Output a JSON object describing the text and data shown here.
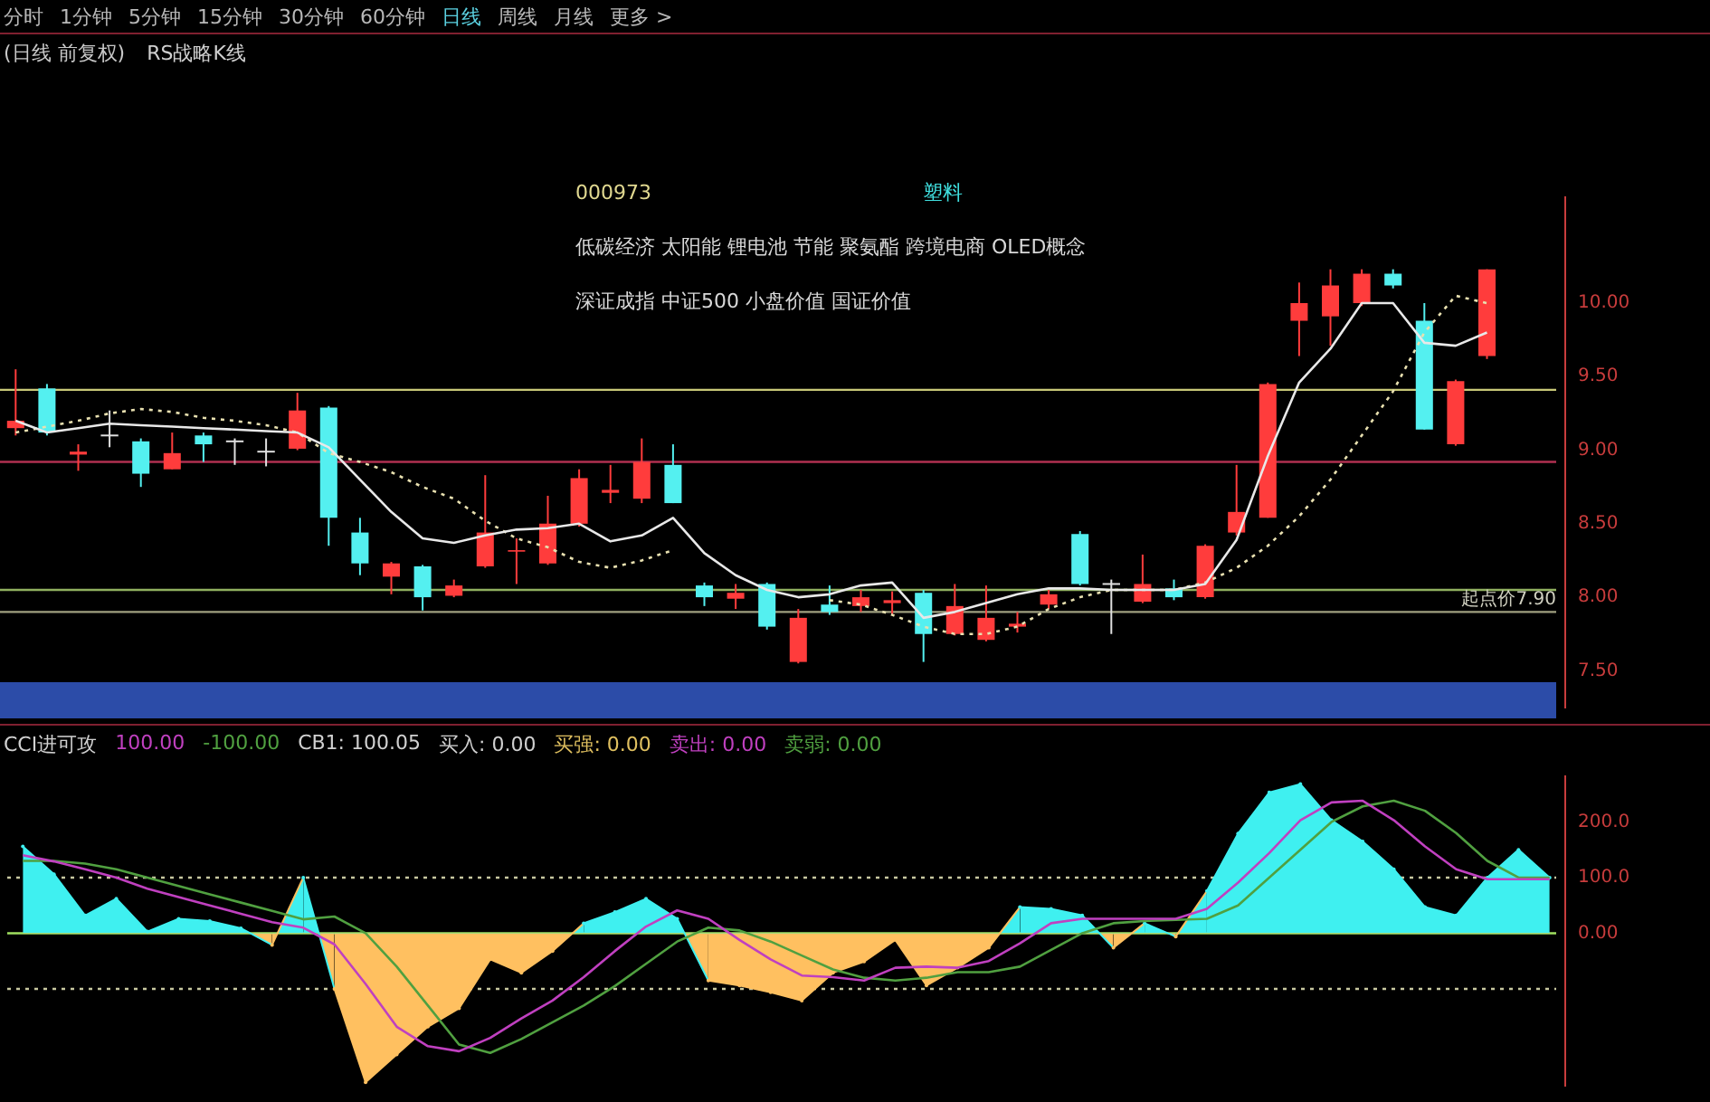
{
  "chart_data": [
    {
      "type": "candlestick",
      "annotations": [
        "分时",
        "1分钟",
        "5分钟",
        "15分钟",
        "30分钟",
        "60分钟",
        "日线",
        "周线",
        "月线",
        "更多 >",
        "(日线 前复权)",
        "RS战略K线",
        "000973",
        "塑料",
        "低碳经济 太阳能 锂电池 节能 聚氨酯 跨境电商 OLED概念",
        "深证成指 中证500 小盘价值 国证价值"
      ],
      "categories": [
        null,
        null,
        null,
        null,
        null,
        null,
        null,
        null,
        null,
        null,
        null,
        null,
        null,
        null,
        null,
        null,
        null,
        null,
        null,
        null,
        null,
        null,
        null,
        null,
        null,
        null,
        null,
        null,
        null,
        null,
        null,
        null,
        null,
        null,
        null,
        null,
        null,
        null,
        null,
        null,
        null,
        null,
        null,
        null,
        null,
        null,
        null,
        null,
        null,
        null
      ],
      "ohlc": [
        [
          9.15,
          9.55,
          9.1,
          9.2
        ],
        [
          9.42,
          9.45,
          9.1,
          9.12
        ],
        [
          8.97,
          9.04,
          8.86,
          8.99
        ],
        [
          9.1,
          9.27,
          9.02,
          9.1
        ],
        [
          9.06,
          9.08,
          8.75,
          8.84
        ],
        [
          8.87,
          9.12,
          8.87,
          8.98
        ],
        [
          9.1,
          9.12,
          8.92,
          9.04
        ],
        [
          9.06,
          9.08,
          8.9,
          9.06
        ],
        [
          8.99,
          9.08,
          8.89,
          8.99
        ],
        [
          9.01,
          9.39,
          9.0,
          9.27
        ],
        [
          9.29,
          9.3,
          8.35,
          8.54
        ],
        [
          8.44,
          8.54,
          8.15,
          8.23
        ],
        [
          8.14,
          8.24,
          8.02,
          8.23
        ],
        [
          8.21,
          8.22,
          7.91,
          8.0
        ],
        [
          8.01,
          8.12,
          8.0,
          8.08
        ],
        [
          8.21,
          8.83,
          8.2,
          8.44
        ],
        [
          8.31,
          8.4,
          8.09,
          8.32
        ],
        [
          8.23,
          8.69,
          8.22,
          8.5
        ],
        [
          8.5,
          8.87,
          8.48,
          8.81
        ],
        [
          8.71,
          8.9,
          8.64,
          8.73
        ],
        [
          8.67,
          9.08,
          8.64,
          8.92
        ],
        [
          8.9,
          9.04,
          8.64,
          8.64
        ],
        [
          8.08,
          8.1,
          7.94,
          8.0
        ],
        [
          7.99,
          8.09,
          7.92,
          8.03
        ],
        [
          8.09,
          8.1,
          7.78,
          7.8
        ],
        [
          7.56,
          7.92,
          7.55,
          7.86
        ],
        [
          7.95,
          8.08,
          7.88,
          7.9
        ],
        [
          7.94,
          8.05,
          7.9,
          8.0
        ],
        [
          7.96,
          8.04,
          7.88,
          7.98
        ],
        [
          8.03,
          8.05,
          7.56,
          7.75
        ],
        [
          7.75,
          8.09,
          7.74,
          7.94
        ],
        [
          7.71,
          8.08,
          7.7,
          7.86
        ],
        [
          7.8,
          7.9,
          7.76,
          7.82
        ],
        [
          7.95,
          8.05,
          7.92,
          8.02
        ],
        [
          8.43,
          8.45,
          8.08,
          8.09
        ],
        [
          8.09,
          8.12,
          7.75,
          8.09
        ],
        [
          7.97,
          8.29,
          7.96,
          8.09
        ],
        [
          8.06,
          8.12,
          7.98,
          8.0
        ],
        [
          8.0,
          8.36,
          7.99,
          8.35
        ],
        [
          8.44,
          8.9,
          8.42,
          8.58
        ],
        [
          8.54,
          9.46,
          8.54,
          9.45
        ],
        [
          9.88,
          10.14,
          9.64,
          10.0
        ],
        [
          9.91,
          10.23,
          9.71,
          10.12
        ],
        [
          10.0,
          10.23,
          9.98,
          10.2
        ],
        [
          10.2,
          10.23,
          10.1,
          10.12
        ],
        [
          9.88,
          10.0,
          9.14,
          9.14
        ],
        [
          9.04,
          9.48,
          9.03,
          9.47
        ],
        [
          9.64,
          10.23,
          9.62,
          10.23
        ],
        null,
        null
      ],
      "colors": [
        "#ff3c3c",
        "#54f0f0",
        "#ff3c3c",
        "#e0e0e0",
        "#54f0f0",
        "#ff3c3c",
        "#54f0f0",
        "#e0e0e0",
        "#e0e0e0",
        "#ff3c3c",
        "#54f0f0",
        "#54f0f0",
        "#ff3c3c",
        "#54f0f0",
        "#ff3c3c",
        "#ff3c3c",
        "#ff3c3c",
        "#ff3c3c",
        "#ff3c3c",
        "#ff3c3c",
        "#ff3c3c",
        "#54f0f0",
        "#54f0f0",
        "#ff3c3c",
        "#54f0f0",
        "#ff3c3c",
        "#54f0f0",
        "#ff3c3c",
        "#ff3c3c",
        "#54f0f0",
        "#ff3c3c",
        "#ff3c3c",
        "#ff3c3c",
        "#ff3c3c",
        "#54f0f0",
        "#e0e0e0",
        "#ff3c3c",
        "#54f0f0",
        "#ff3c3c",
        "#ff3c3c",
        "#ff3c3c",
        "#ff3c3c",
        "#ff3c3c",
        "#ff3c3c",
        "#54f0f0",
        "#54f0f0",
        "#ff3c3c",
        "#ff3c3c",
        "#ff3c3c",
        "#ff3c3c"
      ],
      "series": [
        {
          "type": "line",
          "color": "#e8e8e8",
          "line_style": "solid",
          "values": [
            9.2,
            9.12,
            9.15,
            9.18,
            9.17,
            9.16,
            9.15,
            9.14,
            9.13,
            9.12,
            9.02,
            8.8,
            8.58,
            8.4,
            8.37,
            8.42,
            8.46,
            8.47,
            8.5,
            8.38,
            8.42,
            8.54,
            8.3,
            8.15,
            8.05,
            8.0,
            8.02,
            8.08,
            8.1,
            7.86,
            7.9,
            7.96,
            8.02,
            8.06,
            8.06,
            8.05,
            8.05,
            8.05,
            8.09,
            8.39,
            8.96,
            9.46,
            9.69,
            10.0,
            10.0,
            9.73,
            9.71,
            9.8,
            null,
            null
          ]
        },
        {
          "type": "line",
          "color": "#e8e0b0",
          "line_style": "dotted",
          "values": [
            9.12,
            9.16,
            9.2,
            9.25,
            9.28,
            9.26,
            9.22,
            9.2,
            9.17,
            9.12,
            8.98,
            8.92,
            8.85,
            8.75,
            8.67,
            8.52,
            8.4,
            8.34,
            8.24,
            8.2,
            8.25,
            8.32,
            null,
            null,
            null,
            null,
            7.98,
            7.95,
            7.88,
            7.8,
            7.75,
            7.75,
            7.8,
            7.92,
            8.0,
            8.05,
            8.05,
            8.05,
            8.1,
            8.2,
            8.35,
            8.55,
            8.8,
            9.1,
            9.4,
            9.8,
            10.05,
            10.0,
            null,
            null
          ]
        }
      ],
      "ref_lines": [
        {
          "axis": "y",
          "value": 9.41,
          "color": "#c8c878"
        },
        {
          "axis": "y",
          "value": 8.92,
          "color": "#b03050"
        },
        {
          "axis": "y",
          "value": 8.05,
          "color": "#90b060"
        },
        {
          "axis": "y",
          "value": 7.9,
          "label": "起点价7.90",
          "color": "#a0a080"
        }
      ],
      "ylim": [
        7.25,
        10.72
      ],
      "yticks": [
        {
          "value": 7.5,
          "label": "7.50"
        },
        {
          "value": 8,
          "label": "8.00"
        },
        {
          "value": 8.5,
          "label": "8.50"
        },
        {
          "value": 9,
          "label": "9.00"
        },
        {
          "value": 9.5,
          "label": "9.50"
        },
        {
          "value": 10,
          "label": "10.00"
        }
      ],
      "tick_labels": "y"
    },
    {
      "type": "area",
      "title": "CCI进可攻",
      "annotations": [
        "100.00",
        "-100.00",
        "CB1: 100.05",
        "买入: 0.00",
        "买强: 0.00",
        "卖出: 0.00",
        "卖弱: 0.00"
      ],
      "categories": [
        null,
        null,
        null,
        null,
        null,
        null,
        null,
        null,
        null,
        null,
        null,
        null,
        null,
        null,
        null,
        null,
        null,
        null,
        null,
        null,
        null,
        null,
        null,
        null,
        null,
        null,
        null,
        null,
        null,
        null,
        null,
        null,
        null,
        null,
        null,
        null,
        null,
        null,
        null,
        null,
        null,
        null,
        null,
        null,
        null,
        null,
        null,
        null,
        null,
        null
      ],
      "series": [
        {
          "type": "area",
          "color": "#3ff0f0",
          "colors": [
            "#3ff0f0",
            "#3ff0f0",
            "#3ff0f0",
            "#3ff0f0",
            "#3ff0f0",
            "#3ff0f0",
            "#3ff0f0",
            "#3ff0f0",
            "#ffc060",
            "#3ff0f0",
            "#ffc060",
            "#ffc060",
            "#ffc060",
            "#ffc060",
            "#ffc060",
            "#ffc060",
            "#ffc060",
            "#ffc060",
            "#3ff0f0",
            "#3ff0f0",
            "#3ff0f0",
            "#3ff0f0",
            "#ffc060",
            "#ffc060",
            "#ffc060",
            "#ffc060",
            "#ffc060",
            "#ffc060",
            "#ffc060",
            "#ffc060",
            "#ffc060",
            "#ffc060",
            "#3ff0f0",
            "#3ff0f0",
            "#3ff0f0",
            "#ffc060",
            "#3ff0f0",
            "#ffc060",
            "#3ff0f0",
            "#3ff0f0",
            "#3ff0f0",
            "#3ff0f0",
            "#3ff0f0",
            "#3ff0f0",
            "#3ff0f0",
            "#3ff0f0",
            "#3ff0f0",
            "#3ff0f0",
            "#3ff0f0",
            "#3ff0f0"
          ],
          "values": [
            156,
            106,
            32,
            62,
            3,
            26,
            22,
            9,
            -21,
            100,
            -100,
            -268,
            -218,
            -168,
            -135,
            -47,
            -71,
            -32,
            18,
            38,
            62,
            26,
            -85,
            -94,
            -106,
            -121,
            -71,
            -51,
            -12,
            -94,
            -62,
            -26,
            47,
            44,
            32,
            -26,
            18,
            -6,
            76,
            179,
            253,
            268,
            203,
            165,
            115,
            47,
            32,
            100,
            150,
            100
          ]
        },
        {
          "type": "line",
          "color": "#c040c0",
          "line_style": "solid",
          "values": [
            140,
            129,
            115,
            100,
            80,
            65,
            50,
            35,
            20,
            10,
            -20,
            -91,
            -168,
            -203,
            -212,
            -188,
            -153,
            -121,
            -79,
            -32,
            12,
            41,
            26,
            -12,
            -47,
            -76,
            -79,
            -85,
            -62,
            -60,
            -62,
            -50,
            -18,
            18,
            26,
            26,
            26,
            26,
            44,
            91,
            144,
            203,
            235,
            238,
            203,
            156,
            115,
            97,
            97,
            97
          ]
        },
        {
          "type": "line",
          "color": "#50a040",
          "line_style": "solid",
          "values": [
            130,
            130,
            125,
            115,
            100,
            85,
            70,
            55,
            40,
            25,
            30,
            0,
            -60,
            -130,
            -200,
            -215,
            -190,
            -160,
            -130,
            -95,
            -55,
            -15,
            10,
            5,
            -15,
            -40,
            -65,
            -80,
            -85,
            -80,
            -70,
            -70,
            -60,
            -30,
            0,
            18,
            22,
            24,
            26,
            50,
            100,
            150,
            200,
            228,
            238,
            220,
            180,
            130,
            100,
            100
          ]
        }
      ],
      "ref_lines": [
        {
          "axis": "y",
          "value": 100,
          "color": "#c8c8a0",
          "line_style": "dotted"
        },
        {
          "axis": "y",
          "value": -100,
          "color": "#c8c8a0",
          "line_style": "dotted"
        },
        {
          "axis": "y",
          "value": 0,
          "color": "#a0e060"
        }
      ],
      "ylim": [
        -274,
        282
      ],
      "yticks": [
        {
          "value": 0,
          "label": "0.00"
        },
        {
          "value": 100,
          "label": "100.0"
        },
        {
          "value": 200,
          "label": "200.0"
        }
      ],
      "tick_labels": "y"
    }
  ]
}
